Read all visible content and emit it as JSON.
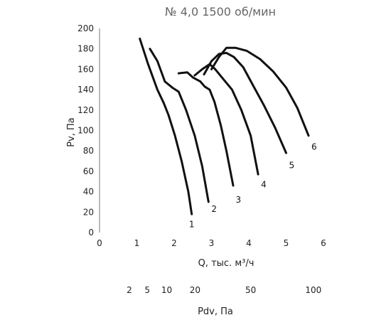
{
  "chart_data": {
    "type": "line",
    "title": "№ 4,0 1500 об/мин",
    "xlabel": "Q, тыс. м³/ч",
    "ylabel": "Pv, Па",
    "xlim": [
      0,
      6
    ],
    "ylim": [
      0,
      200
    ],
    "x_ticks": [
      "0",
      "1",
      "2",
      "3",
      "4",
      "5",
      "6"
    ],
    "y_ticks": [
      "0",
      "20",
      "40",
      "60",
      "80",
      "100",
      "120",
      "140",
      "160",
      "180",
      "200"
    ],
    "grid": false,
    "secondary_axis": {
      "label": "Pdv, Па",
      "ticks": [
        {
          "label": "2",
          "q": 0.8
        },
        {
          "label": "5",
          "q": 1.28
        },
        {
          "label": "10",
          "q": 1.8
        },
        {
          "label": "20",
          "q": 2.56
        },
        {
          "label": "50",
          "q": 4.05
        },
        {
          "label": "100",
          "q": 5.73
        }
      ]
    },
    "series": [
      {
        "name": "1",
        "x": [
          1.08,
          1.3,
          1.55,
          1.72,
          1.85,
          2.02,
          2.2,
          2.38,
          2.47
        ],
        "y": [
          190,
          165,
          140,
          127,
          115,
          95,
          70,
          40,
          18
        ]
      },
      {
        "name": "2",
        "x": [
          1.35,
          1.55,
          1.75,
          1.95,
          2.12,
          2.32,
          2.55,
          2.75,
          2.92
        ],
        "y": [
          180,
          168,
          148,
          142,
          138,
          120,
          95,
          65,
          30
        ]
      },
      {
        "name": "3",
        "x": [
          2.12,
          2.35,
          2.5,
          2.7,
          2.82,
          2.95,
          3.08,
          3.25,
          3.4,
          3.58
        ],
        "y": [
          156,
          157,
          152,
          148,
          143,
          140,
          128,
          105,
          80,
          46
        ]
      },
      {
        "name": "4",
        "x": [
          2.55,
          2.75,
          2.95,
          3.1,
          3.28,
          3.55,
          3.8,
          4.05,
          4.25
        ],
        "y": [
          154,
          160,
          165,
          160,
          152,
          140,
          120,
          95,
          57
        ]
      },
      {
        "name": "5",
        "x": [
          2.8,
          3.0,
          3.2,
          3.4,
          3.6,
          3.85,
          4.1,
          4.4,
          4.7,
          5.0
        ],
        "y": [
          155,
          168,
          175,
          176,
          172,
          162,
          145,
          125,
          103,
          78
        ]
      },
      {
        "name": "6",
        "x": [
          3.0,
          3.2,
          3.4,
          3.65,
          3.95,
          4.3,
          4.65,
          5.0,
          5.3,
          5.6
        ],
        "y": [
          160,
          172,
          181,
          181,
          178,
          170,
          158,
          142,
          122,
          95
        ]
      }
    ],
    "curve_labels": [
      {
        "text": "1",
        "x": 2.47,
        "y": 8
      },
      {
        "text": "2",
        "x": 3.07,
        "y": 23
      },
      {
        "text": "3",
        "x": 3.72,
        "y": 32
      },
      {
        "text": "4",
        "x": 4.4,
        "y": 47
      },
      {
        "text": "5",
        "x": 5.15,
        "y": 66
      },
      {
        "text": "6",
        "x": 5.75,
        "y": 84
      }
    ]
  }
}
